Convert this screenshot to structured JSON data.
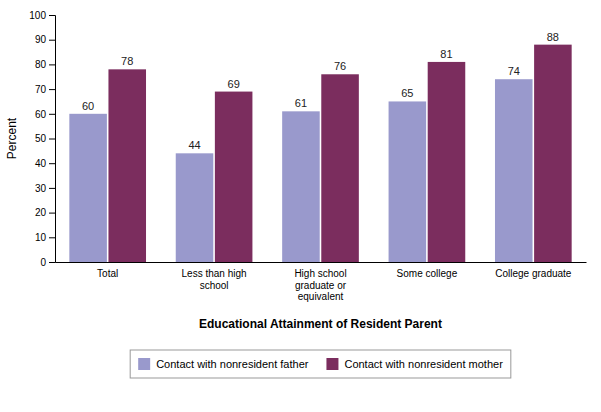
{
  "chart_data": {
    "type": "bar",
    "categories": [
      "Total",
      "Less than high\nschool",
      "High school\ngraduate or\nequivalent",
      "Some college",
      "College graduate"
    ],
    "series": [
      {
        "name": "Contact with nonresident father",
        "color": "#9999CC",
        "values": [
          60,
          44,
          61,
          65,
          74
        ]
      },
      {
        "name": "Contact with nonresident mother",
        "color": "#7B2D5E",
        "values": [
          78,
          69,
          76,
          81,
          88
        ]
      }
    ],
    "xlabel": "Educational Attainment of Resident Parent",
    "ylabel": "Percent",
    "ylim": [
      0,
      100
    ],
    "yticks": [
      0,
      10,
      20,
      30,
      40,
      50,
      60,
      70,
      80,
      90,
      100
    ],
    "data_labels": true,
    "grid": false,
    "legend": "bottom"
  }
}
